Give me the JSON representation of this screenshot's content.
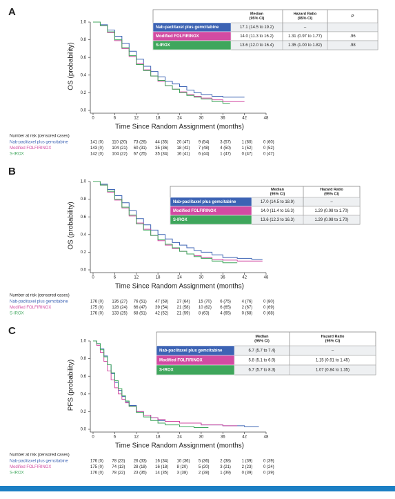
{
  "chart_data": [
    {
      "type": "line",
      "panel": "A",
      "ylabel": "OS (probability)",
      "xlabel": "Time Since Random Assignment (months)",
      "xlim": [
        0,
        48
      ],
      "xticks": [
        0,
        6,
        12,
        18,
        24,
        30,
        36,
        42,
        48
      ],
      "ylim": [
        0,
        1.0
      ],
      "yticks": [
        {
          "value": 0,
          "label": "0.0"
        },
        0.2,
        0.4,
        0.6,
        0.8,
        {
          "value": 1,
          "label": "1.0"
        }
      ],
      "table_headers": [
        [
          "Median",
          "(95% CI)"
        ],
        [
          "Hazard Ratio",
          "(95% CI)"
        ],
        [
          "P"
        ]
      ],
      "risk_title": "Number at risk (censored cases)",
      "series": [
        {
          "name": "Nab-paclitaxel plus gemcitabine",
          "color": "#3c63b4",
          "median": "17.1 (14.5 to 19.2)",
          "hazard_ratio": "–",
          "x": [
            0,
            2,
            4,
            6,
            8,
            10,
            12,
            14,
            16,
            18,
            20,
            22,
            24,
            26,
            28,
            30,
            33,
            36,
            40,
            42
          ],
          "values": [
            1,
            0.97,
            0.91,
            0.84,
            0.76,
            0.67,
            0.58,
            0.5,
            0.44,
            0.38,
            0.33,
            0.3,
            0.27,
            0.23,
            0.2,
            0.18,
            0.16,
            0.15,
            0.15,
            0.15
          ],
          "at_risk": [
            "141 (0)",
            "110 (20)",
            "73 (26)",
            "44 (35)",
            "20 (47)",
            "9 (54)",
            "3 (57)",
            "1 (60)",
            "0 (60)"
          ]
        },
        {
          "name": "Modified FOLFIRINOX",
          "color": "#d24ba2",
          "median": "14.0 (11.3 to 16.2)",
          "hazard_ratio": "1.31 (0.97 to 1.77)",
          "p": ".96",
          "x": [
            0,
            2,
            4,
            6,
            8,
            10,
            12,
            14,
            16,
            18,
            20,
            22,
            24,
            26,
            28,
            30,
            33,
            36,
            40,
            42
          ],
          "values": [
            1,
            0.96,
            0.88,
            0.79,
            0.7,
            0.61,
            0.53,
            0.46,
            0.39,
            0.33,
            0.28,
            0.24,
            0.21,
            0.18,
            0.16,
            0.14,
            0.12,
            0.1,
            0.1,
            0.1
          ],
          "at_risk": [
            "143 (0)",
            "104 (21)",
            "60 (31)",
            "35 (36)",
            "18 (42)",
            "7 (48)",
            "4 (50)",
            "1 (52)",
            "0 (52)"
          ]
        },
        {
          "name": "S-IROX",
          "color": "#3fa65c",
          "median": "13.6 (12.0 to 16.4)",
          "hazard_ratio": "1.35 (1.00 to 1.82)",
          "p": ".98",
          "x": [
            0,
            2,
            4,
            6,
            8,
            10,
            12,
            14,
            16,
            18,
            20,
            22,
            24,
            26,
            28,
            30,
            33,
            36,
            38
          ],
          "values": [
            1,
            0.96,
            0.89,
            0.8,
            0.71,
            0.62,
            0.52,
            0.45,
            0.39,
            0.34,
            0.28,
            0.24,
            0.2,
            0.17,
            0.15,
            0.13,
            0.1,
            0.08,
            0.08
          ],
          "at_risk": [
            "142 (0)",
            "104 (22)",
            "67 (25)",
            "35 (34)",
            "16 (41)",
            "6 (44)",
            "1 (47)",
            "0 (47)",
            "0 (47)"
          ]
        }
      ]
    },
    {
      "type": "line",
      "panel": "B",
      "ylabel": "OS (probability)",
      "xlabel": "Time Since Random Assignment (months)",
      "xlim": [
        0,
        48
      ],
      "xticks": [
        0,
        6,
        12,
        18,
        24,
        30,
        36,
        42,
        48
      ],
      "ylim": [
        0,
        1.0
      ],
      "yticks": [
        {
          "value": 0,
          "label": "0.0"
        },
        0.2,
        0.4,
        0.6,
        0.8,
        {
          "value": 1,
          "label": "1.0"
        }
      ],
      "table_headers": [
        [
          "Median",
          "(95% CI)"
        ],
        [
          "Hazard Ratio",
          "(95% CI)"
        ]
      ],
      "risk_title": "Number at risk (censored cases)",
      "series": [
        {
          "name": "Nab-paclitaxel plus gemcitabine",
          "color": "#3c63b4",
          "median": "17.0 (14.5 to 18.9)",
          "hazard_ratio": "–",
          "x": [
            0,
            2,
            4,
            6,
            8,
            10,
            12,
            14,
            16,
            18,
            20,
            22,
            24,
            26,
            28,
            30,
            33,
            36,
            40,
            44,
            47
          ],
          "values": [
            1,
            0.97,
            0.91,
            0.84,
            0.76,
            0.67,
            0.58,
            0.51,
            0.45,
            0.4,
            0.35,
            0.31,
            0.28,
            0.25,
            0.22,
            0.2,
            0.17,
            0.14,
            0.13,
            0.12,
            0.12
          ],
          "at_risk": [
            "176 (0)",
            "135 (27)",
            "76 (51)",
            "47 (58)",
            "27 (64)",
            "15 (70)",
            "6 (75)",
            "4 (76)",
            "0 (80)"
          ]
        },
        {
          "name": "Modified FOLFIRINOX",
          "color": "#d24ba2",
          "median": "14.0 (11.4 to 16.3)",
          "hazard_ratio": "1.29 (0.98 to 1.70)",
          "x": [
            0,
            2,
            4,
            6,
            8,
            10,
            12,
            14,
            16,
            18,
            20,
            22,
            24,
            26,
            28,
            30,
            33,
            36,
            40,
            44,
            47
          ],
          "values": [
            1,
            0.96,
            0.88,
            0.79,
            0.7,
            0.61,
            0.53,
            0.46,
            0.39,
            0.33,
            0.28,
            0.24,
            0.21,
            0.18,
            0.16,
            0.14,
            0.12,
            0.11,
            0.1,
            0.1,
            0.1
          ],
          "at_risk": [
            "175 (0)",
            "128 (24)",
            "66 (47)",
            "39 (54)",
            "21 (58)",
            "10 (62)",
            "6 (65)",
            "2 (67)",
            "0 (69)"
          ]
        },
        {
          "name": "S-IROX",
          "color": "#3fa65c",
          "median": "13.6 (12.3 to 16.3)",
          "hazard_ratio": "1.29 (0.98 to 1.70)",
          "x": [
            0,
            2,
            4,
            6,
            8,
            10,
            12,
            14,
            16,
            18,
            20,
            22,
            24,
            26,
            28,
            30,
            33,
            36,
            40
          ],
          "values": [
            1,
            0.96,
            0.89,
            0.8,
            0.71,
            0.62,
            0.52,
            0.45,
            0.39,
            0.34,
            0.29,
            0.25,
            0.21,
            0.18,
            0.15,
            0.13,
            0.1,
            0.08,
            0.08
          ],
          "at_risk": [
            "176 (0)",
            "133 (25)",
            "68 (51)",
            "42 (52)",
            "21 (59)",
            "8 (63)",
            "4 (65)",
            "0 (68)",
            "0 (68)"
          ]
        }
      ]
    },
    {
      "type": "line",
      "panel": "C",
      "ylabel": "PFS (probability)",
      "xlabel": "Time Since Random Assignment (months)",
      "xlim": [
        0,
        48
      ],
      "xticks": [
        0,
        6,
        12,
        18,
        24,
        30,
        36,
        42,
        48
      ],
      "ylim": [
        0,
        1.0
      ],
      "yticks": [
        {
          "value": 0,
          "label": "0.0"
        },
        0.2,
        0.4,
        0.6,
        0.8,
        {
          "value": 1,
          "label": "1.0"
        }
      ],
      "table_headers": [
        [
          "Median",
          "(95% CI)"
        ],
        [
          "Hazard Ratio",
          "(95% CI)"
        ]
      ],
      "risk_title": "Number at risk (censored cases)",
      "series": [
        {
          "name": "Nab-paclitaxel plus gemcitabine",
          "color": "#3c63b4",
          "median": "6.7 (5.7 to 7.4)",
          "hazard_ratio": "–",
          "x": [
            0,
            1,
            2,
            3,
            4,
            5,
            6,
            7,
            8,
            9,
            10,
            12,
            14,
            16,
            18,
            20,
            24,
            30,
            36,
            42,
            46
          ],
          "values": [
            1,
            0.97,
            0.91,
            0.83,
            0.73,
            0.63,
            0.53,
            0.44,
            0.37,
            0.31,
            0.27,
            0.2,
            0.16,
            0.13,
            0.1,
            0.09,
            0.07,
            0.05,
            0.04,
            0.03,
            0.03
          ]
        },
        {
          "name": "Modified FOLFIRINOX",
          "color": "#d24ba2",
          "median": "5.8 (5.1 to 6.9)",
          "hazard_ratio": "1.15 (0.91 to 1.45)",
          "x": [
            0,
            1,
            2,
            3,
            4,
            5,
            6,
            7,
            8,
            9,
            10,
            12,
            14,
            16,
            18,
            20,
            24,
            30,
            36,
            40
          ],
          "values": [
            1,
            0.95,
            0.87,
            0.77,
            0.66,
            0.56,
            0.47,
            0.4,
            0.34,
            0.3,
            0.26,
            0.2,
            0.16,
            0.13,
            0.11,
            0.09,
            0.07,
            0.05,
            0.04,
            0.04
          ]
        },
        {
          "name": "S-IROX",
          "color": "#3fa65c",
          "median": "6.7 (5.7 to 8.3)",
          "hazard_ratio": "1.07 (0.84 to 1.35)",
          "x": [
            0,
            1,
            2,
            3,
            4,
            5,
            6,
            7,
            8,
            9,
            10,
            12,
            14,
            16,
            18,
            20,
            24,
            28,
            32
          ],
          "values": [
            1,
            0.97,
            0.9,
            0.82,
            0.73,
            0.64,
            0.55,
            0.46,
            0.38,
            0.32,
            0.26,
            0.19,
            0.14,
            0.1,
            0.07,
            0.05,
            0.03,
            0.02,
            0.02
          ]
        }
      ],
      "risk_rows": [
        [
          "176 (0)",
          "78 (23)",
          "26 (33)",
          "16 (34)",
          "10 (36)",
          "5 (36)",
          "2 (38)",
          "1 (39)",
          "0 (39)"
        ],
        [
          "175 (0)",
          "74 (13)",
          "28 (18)",
          "16 (18)",
          "8 (20)",
          "5 (20)",
          "3 (21)",
          "2 (23)",
          "0 (24)"
        ],
        [
          "176 (0)",
          "78 (22)",
          "23 (35)",
          "14 (35)",
          "3 (38)",
          "2 (38)",
          "1 (39)",
          "0 (39)",
          "0 (39)"
        ]
      ]
    }
  ]
}
